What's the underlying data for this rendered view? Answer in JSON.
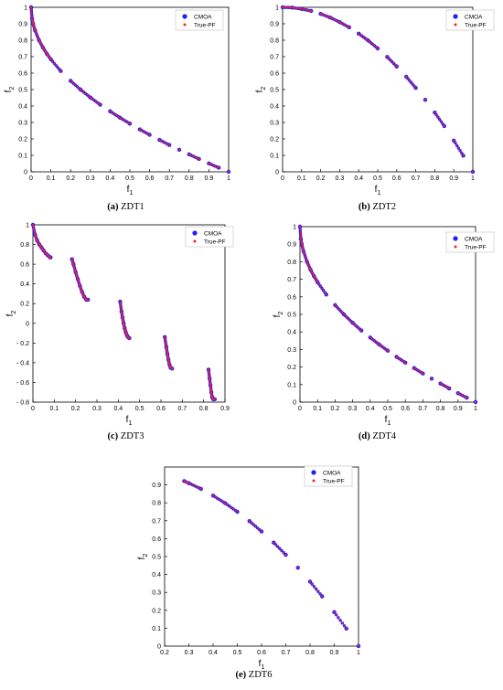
{
  "colors": {
    "cmoa": "#1f1fff",
    "true_pf": "#ff2020",
    "axis": "#000000",
    "legend_border": "#bfbfbf"
  },
  "chart_data": [
    {
      "id": "zdt1",
      "type": "scatter",
      "caption_tag": "(a)",
      "caption_name": "ZDT1",
      "xlabel": "f",
      "xlabel_sub": "1",
      "ylabel": "f",
      "ylabel_sub": "2",
      "xlim": [
        0,
        1
      ],
      "ylim": [
        0,
        1
      ],
      "xticks": [
        "0",
        "0.1",
        "0.2",
        "0.3",
        "0.4",
        "0.5",
        "0.6",
        "0.7",
        "0.8",
        "0.9",
        "1"
      ],
      "yticks": [
        "0",
        "0.1",
        "0.2",
        "0.3",
        "0.4",
        "0.5",
        "0.6",
        "0.7",
        "0.8",
        "0.9",
        "1"
      ],
      "legend": [
        "CMOA",
        "True-PF"
      ],
      "legend_position": "top-right",
      "series": [
        {
          "name": "CMOA",
          "marker": "circle",
          "x": [
            0,
            0.005,
            0.01,
            0.02,
            0.04,
            0.06,
            0.08,
            0.1,
            0.15,
            0.2,
            0.25,
            0.3,
            0.35,
            0.4,
            0.45,
            0.5,
            0.55,
            0.6,
            0.65,
            0.7,
            0.75,
            0.8,
            0.85,
            0.9,
            0.95,
            1
          ],
          "y": [
            1,
            0.93,
            0.9,
            0.86,
            0.8,
            0.755,
            0.717,
            0.684,
            0.613,
            0.553,
            0.5,
            0.452,
            0.408,
            0.368,
            0.329,
            0.293,
            0.258,
            0.225,
            0.194,
            0.163,
            0.134,
            0.106,
            0.078,
            0.051,
            0.025,
            0
          ]
        },
        {
          "name": "True-PF",
          "marker": "dot",
          "x": [
            0,
            0.005,
            0.01,
            0.02,
            0.04,
            0.06,
            0.08,
            0.1,
            0.15,
            0.2,
            0.25,
            0.3,
            0.35,
            0.4,
            0.45,
            0.5,
            0.55,
            0.6,
            0.65,
            0.7,
            0.75,
            0.8,
            0.85,
            0.9,
            0.95,
            1
          ],
          "y": [
            1,
            0.93,
            0.9,
            0.86,
            0.8,
            0.755,
            0.717,
            0.684,
            0.613,
            0.553,
            0.5,
            0.452,
            0.408,
            0.368,
            0.329,
            0.293,
            0.258,
            0.225,
            0.194,
            0.163,
            0.134,
            0.106,
            0.078,
            0.051,
            0.025,
            0
          ]
        }
      ]
    },
    {
      "id": "zdt2",
      "type": "scatter",
      "caption_tag": "(b)",
      "caption_name": "ZDT2",
      "xlabel": "f",
      "xlabel_sub": "1",
      "ylabel": "f",
      "ylabel_sub": "2",
      "xlim": [
        0,
        1
      ],
      "ylim": [
        0,
        1
      ],
      "xticks": [
        "0",
        "0.1",
        "0.2",
        "0.3",
        "0.4",
        "0.5",
        "0.6",
        "0.7",
        "0.8",
        "0.9",
        "1"
      ],
      "yticks": [
        "0",
        "0.1",
        "0.2",
        "0.3",
        "0.4",
        "0.5",
        "0.6",
        "0.7",
        "0.8",
        "0.9",
        "1"
      ],
      "legend": [
        "CMOA",
        "True-PF"
      ],
      "legend_position": "top-right",
      "series": [
        {
          "name": "CMOA",
          "marker": "circle",
          "x": [
            0,
            0.05,
            0.1,
            0.15,
            0.2,
            0.25,
            0.3,
            0.35,
            0.4,
            0.45,
            0.5,
            0.55,
            0.6,
            0.65,
            0.7,
            0.75,
            0.8,
            0.85,
            0.9,
            0.95,
            1
          ],
          "y": [
            1,
            0.998,
            0.99,
            0.978,
            0.96,
            0.938,
            0.91,
            0.878,
            0.84,
            0.798,
            0.75,
            0.698,
            0.64,
            0.578,
            0.51,
            0.438,
            0.36,
            0.278,
            0.19,
            0.098,
            0
          ]
        },
        {
          "name": "True-PF",
          "marker": "dot",
          "x": [
            0,
            0.05,
            0.1,
            0.15,
            0.2,
            0.25,
            0.3,
            0.35,
            0.4,
            0.45,
            0.5,
            0.55,
            0.6,
            0.65,
            0.7,
            0.75,
            0.8,
            0.85,
            0.9,
            0.95,
            1
          ],
          "y": [
            1,
            0.998,
            0.99,
            0.978,
            0.96,
            0.938,
            0.91,
            0.878,
            0.84,
            0.798,
            0.75,
            0.698,
            0.64,
            0.578,
            0.51,
            0.438,
            0.36,
            0.278,
            0.19,
            0.098,
            0
          ]
        }
      ]
    },
    {
      "id": "zdt3",
      "type": "scatter",
      "caption_tag": "(c)",
      "caption_name": "ZDT3",
      "xlabel": "f",
      "xlabel_sub": "1",
      "ylabel": "f",
      "ylabel_sub": "2",
      "xlim": [
        0,
        0.9
      ],
      "ylim": [
        -0.8,
        1
      ],
      "xticks": [
        "0",
        "0.1",
        "0.2",
        "0.3",
        "0.4",
        "0.5",
        "0.6",
        "0.7",
        "0.8",
        "0.9"
      ],
      "yticks": [
        "- 0.8",
        "- 0.6",
        "- 0.4",
        "- 0.2",
        "0",
        "0.2",
        "0.4",
        "0.6",
        "0.8",
        "1"
      ],
      "legend": [
        "CMOA",
        "True-PF"
      ],
      "legend_position": "top-right",
      "series": [
        {
          "name": "CMOA",
          "marker": "circle",
          "x": [
            0,
            0.01,
            0.02,
            0.03,
            0.04,
            0.05,
            0.06,
            0.07,
            0.08,
            0.083,
            0.183,
            0.19,
            0.2,
            0.21,
            0.22,
            0.23,
            0.24,
            0.25,
            0.258,
            0.409,
            0.415,
            0.42,
            0.425,
            0.43,
            0.435,
            0.44,
            0.445,
            0.452,
            0.618,
            0.625,
            0.63,
            0.635,
            0.64,
            0.645,
            0.652,
            0.823,
            0.828,
            0.832,
            0.836,
            0.84,
            0.845,
            0.852
          ],
          "y": [
            1,
            0.9,
            0.84,
            0.8,
            0.77,
            0.74,
            0.71,
            0.69,
            0.67,
            0.67,
            0.65,
            0.6,
            0.52,
            0.45,
            0.38,
            0.32,
            0.27,
            0.24,
            0.24,
            0.22,
            0.12,
            0.06,
            0.0,
            -0.05,
            -0.09,
            -0.12,
            -0.14,
            -0.15,
            -0.14,
            -0.24,
            -0.31,
            -0.37,
            -0.42,
            -0.45,
            -0.46,
            -0.47,
            -0.56,
            -0.63,
            -0.7,
            -0.75,
            -0.77,
            -0.77
          ]
        },
        {
          "name": "True-PF",
          "marker": "dot",
          "x": [
            0,
            0.01,
            0.02,
            0.03,
            0.04,
            0.05,
            0.06,
            0.07,
            0.08,
            0.083,
            0.183,
            0.19,
            0.2,
            0.21,
            0.22,
            0.23,
            0.24,
            0.25,
            0.258,
            0.409,
            0.415,
            0.42,
            0.425,
            0.43,
            0.435,
            0.44,
            0.445,
            0.452,
            0.618,
            0.625,
            0.63,
            0.635,
            0.64,
            0.645,
            0.652,
            0.823,
            0.828,
            0.832,
            0.836,
            0.84,
            0.845,
            0.852
          ],
          "y": [
            1,
            0.9,
            0.84,
            0.8,
            0.77,
            0.74,
            0.71,
            0.69,
            0.67,
            0.67,
            0.65,
            0.6,
            0.52,
            0.45,
            0.38,
            0.32,
            0.27,
            0.24,
            0.24,
            0.22,
            0.12,
            0.06,
            0.0,
            -0.05,
            -0.09,
            -0.12,
            -0.14,
            -0.15,
            -0.14,
            -0.24,
            -0.31,
            -0.37,
            -0.42,
            -0.45,
            -0.46,
            -0.47,
            -0.56,
            -0.63,
            -0.7,
            -0.75,
            -0.77,
            -0.77
          ]
        }
      ]
    },
    {
      "id": "zdt4",
      "type": "scatter",
      "caption_tag": "(d)",
      "caption_name": "ZDT4",
      "xlabel": "f",
      "xlabel_sub": "1",
      "ylabel": "f",
      "ylabel_sub": "2",
      "xlim": [
        0,
        1
      ],
      "ylim": [
        0,
        1
      ],
      "xticks": [
        "0",
        "0.1",
        "0.2",
        "0.3",
        "0.4",
        "0.5",
        "0.6",
        "0.7",
        "0.8",
        "0.9",
        "1"
      ],
      "yticks": [
        "0",
        "0.1",
        "0.2",
        "0.3",
        "0.4",
        "0.5",
        "0.6",
        "0.7",
        "0.8",
        "0.9",
        "1"
      ],
      "legend": [
        "CMOA",
        "True-PF"
      ],
      "legend_position": "top-right",
      "series": [
        {
          "name": "CMOA",
          "marker": "circle",
          "x": [
            0,
            0.005,
            0.01,
            0.02,
            0.04,
            0.06,
            0.08,
            0.1,
            0.15,
            0.2,
            0.25,
            0.3,
            0.35,
            0.4,
            0.45,
            0.5,
            0.55,
            0.6,
            0.65,
            0.7,
            0.75,
            0.8,
            0.85,
            0.9,
            0.95,
            1
          ],
          "y": [
            1,
            0.93,
            0.9,
            0.86,
            0.8,
            0.755,
            0.717,
            0.684,
            0.613,
            0.553,
            0.5,
            0.452,
            0.408,
            0.368,
            0.329,
            0.293,
            0.258,
            0.225,
            0.194,
            0.163,
            0.134,
            0.106,
            0.078,
            0.051,
            0.025,
            0
          ]
        },
        {
          "name": "True-PF",
          "marker": "dot",
          "x": [
            0,
            0.005,
            0.01,
            0.02,
            0.04,
            0.06,
            0.08,
            0.1,
            0.15,
            0.2,
            0.25,
            0.3,
            0.35,
            0.4,
            0.45,
            0.5,
            0.55,
            0.6,
            0.65,
            0.7,
            0.75,
            0.8,
            0.85,
            0.9,
            0.95,
            1
          ],
          "y": [
            1,
            0.93,
            0.9,
            0.86,
            0.8,
            0.755,
            0.717,
            0.684,
            0.613,
            0.553,
            0.5,
            0.452,
            0.408,
            0.368,
            0.329,
            0.293,
            0.258,
            0.225,
            0.194,
            0.163,
            0.134,
            0.106,
            0.078,
            0.051,
            0.025,
            0
          ]
        }
      ]
    },
    {
      "id": "zdt6",
      "type": "scatter",
      "caption_tag": "(e)",
      "caption_name": "ZDT6",
      "xlabel": "f",
      "xlabel_sub": "1",
      "ylabel": "f",
      "ylabel_sub": "2",
      "xlim": [
        0.2,
        1
      ],
      "ylim": [
        0,
        1
      ],
      "xticks": [
        "0.2",
        "0.3",
        "0.4",
        "0.5",
        "0.6",
        "0.7",
        "0.8",
        "0.9",
        "1"
      ],
      "yticks": [
        "0",
        "0.1",
        "0.2",
        "0.3",
        "0.4",
        "0.5",
        "0.6",
        "0.7",
        "0.8",
        "0.9"
      ],
      "legend": [
        "CMOA",
        "True-PF"
      ],
      "legend_position": "top-right",
      "series": [
        {
          "name": "CMOA",
          "marker": "circle",
          "x": [
            0.281,
            0.3,
            0.35,
            0.4,
            0.45,
            0.5,
            0.55,
            0.6,
            0.65,
            0.7,
            0.75,
            0.8,
            0.85,
            0.9,
            0.95,
            1
          ],
          "y": [
            0.921,
            0.91,
            0.878,
            0.84,
            0.798,
            0.75,
            0.698,
            0.64,
            0.578,
            0.51,
            0.438,
            0.36,
            0.278,
            0.19,
            0.098,
            0
          ]
        },
        {
          "name": "True-PF",
          "marker": "dot",
          "x": [
            0.281,
            0.3,
            0.35,
            0.4,
            0.45,
            0.5,
            0.55,
            0.6,
            0.65,
            0.7,
            0.75,
            0.8,
            0.85,
            0.9,
            0.95,
            1
          ],
          "y": [
            0.921,
            0.91,
            0.878,
            0.84,
            0.798,
            0.75,
            0.698,
            0.64,
            0.578,
            0.51,
            0.438,
            0.36,
            0.278,
            0.19,
            0.098,
            0
          ]
        }
      ]
    }
  ]
}
